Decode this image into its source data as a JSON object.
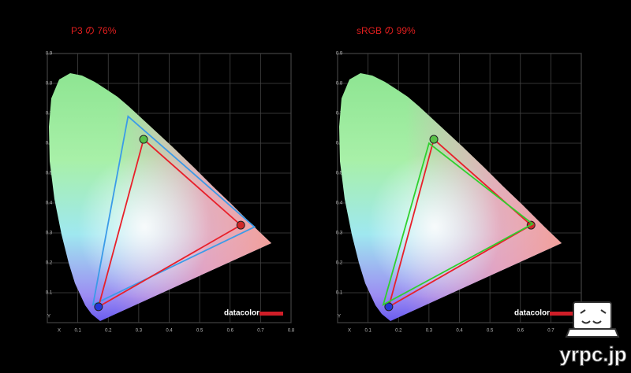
{
  "chart_data": [
    {
      "type": "gamut",
      "title": "P3 の 76%",
      "logo_text": "datacolor",
      "xlim": [
        0,
        0.8
      ],
      "ylim": [
        0,
        0.9
      ],
      "xticks": [
        {
          "value": 0,
          "label": "X"
        },
        0.1,
        0.2,
        0.3,
        0.4,
        0.5,
        0.6,
        0.7,
        0.8
      ],
      "yticks": [
        {
          "value": 0,
          "label": "Y"
        },
        0.1,
        0.2,
        0.3,
        0.4,
        0.5,
        0.6,
        0.7,
        0.8,
        0.9
      ],
      "grid": true,
      "closed": true,
      "series": [
        {
          "color": "#3b9be8",
          "x": [
            0.68,
            0.265,
            0.15
          ],
          "values": [
            0.32,
            0.69,
            0.06
          ]
        },
        {
          "color": "#e8202a",
          "x": [
            0.635,
            0.316,
            0.168
          ],
          "values": [
            0.326,
            0.613,
            0.053
          ],
          "markers": true,
          "marker_colors": [
            "#d02828",
            "#58c048",
            "#2436d8"
          ]
        }
      ]
    },
    {
      "type": "gamut",
      "title": "sRGB の 99%",
      "logo_text": "datacolor",
      "xlim": [
        0,
        0.8
      ],
      "ylim": [
        0,
        0.9
      ],
      "xticks": [
        {
          "value": 0,
          "label": "X"
        },
        0.1,
        0.2,
        0.3,
        0.4,
        0.5,
        0.6,
        0.7,
        0.8
      ],
      "yticks": [
        {
          "value": 0,
          "label": "Y"
        },
        0.1,
        0.2,
        0.3,
        0.4,
        0.5,
        0.6,
        0.7,
        0.8,
        0.9
      ],
      "grid": true,
      "closed": true,
      "series": [
        {
          "color": "#e8202a",
          "x": [
            0.635,
            0.316,
            0.168
          ],
          "values": [
            0.326,
            0.613,
            0.053
          ],
          "markers": true,
          "marker_colors": [
            "#d02828",
            "#58c048",
            "#2436d8"
          ]
        },
        {
          "color": "#2ed12e",
          "x": [
            0.64,
            0.3,
            0.15
          ],
          "values": [
            0.33,
            0.6,
            0.06
          ]
        }
      ]
    }
  ],
  "watermark": "yrpc.jp"
}
